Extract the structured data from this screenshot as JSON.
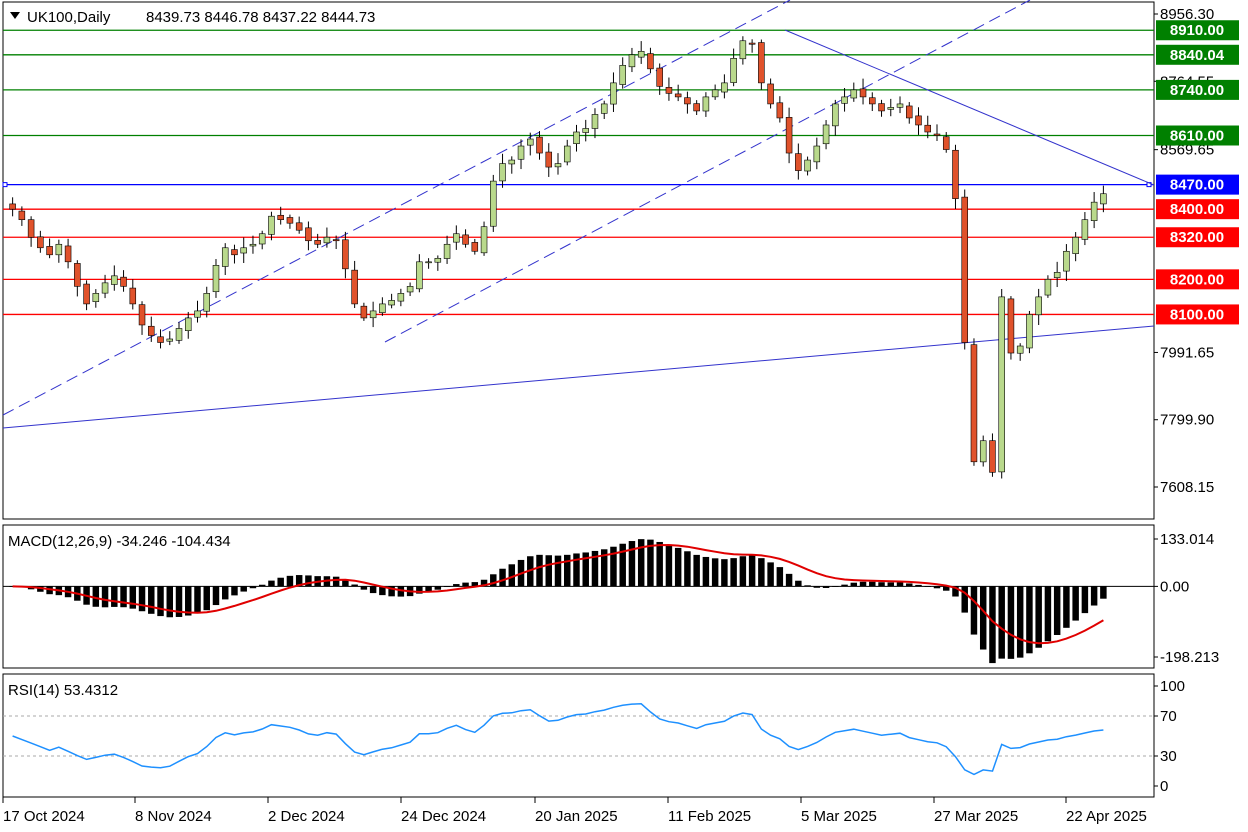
{
  "header": {
    "symbol": "UK100,Daily",
    "ohlc": "8439.73 8446.78 8437.22 8444.73"
  },
  "colors": {
    "bull": "#b9d98c",
    "bear": "#e0522b",
    "wick": "#000000",
    "resistance": "#008000",
    "support": "#ff0000",
    "pivot": "#0000ff",
    "trend": "#3333cc",
    "macd_hist": "#000000",
    "macd_signal": "#e00000",
    "rsi": "#1e90ff"
  },
  "chart_data": [
    {
      "type": "candlestick",
      "title": "UK100,Daily",
      "ylim": [
        7450,
        8990
      ],
      "y_ticks": [
        "8956.30",
        "8764.55",
        "8569.65",
        "7991.65",
        "7799.90",
        "7608.15"
      ],
      "x_ticks": [
        "17 Oct 2024",
        "8 Nov 2024",
        "2 Dec 2024",
        "24 Dec 2024",
        "20 Jan 2025",
        "11 Feb 2025",
        "5 Mar 2025",
        "27 Mar 2025",
        "22 Apr 2025"
      ],
      "levels": [
        {
          "label": "8910.00",
          "value": 8910.0,
          "kind": "resistance"
        },
        {
          "label": "8840.04",
          "value": 8840.04,
          "kind": "resistance"
        },
        {
          "label": "8740.00",
          "value": 8740.0,
          "kind": "resistance"
        },
        {
          "label": "8610.00",
          "value": 8610.0,
          "kind": "resistance"
        },
        {
          "label": "8470.00",
          "value": 8470.0,
          "kind": "pivot"
        },
        {
          "label": "8400.00",
          "value": 8400.0,
          "kind": "support"
        },
        {
          "label": "8320.00",
          "value": 8320.0,
          "kind": "support"
        },
        {
          "label": "8200.00",
          "value": 8200.0,
          "kind": "support"
        },
        {
          "label": "8100.00",
          "value": 8100.0,
          "kind": "support"
        }
      ],
      "closes": [
        8400,
        8370,
        8320,
        8290,
        8270,
        8300,
        8250,
        8180,
        8130,
        8160,
        8190,
        8210,
        8180,
        8130,
        8070,
        8040,
        8020,
        8030,
        8060,
        8090,
        8110,
        8160,
        8240,
        8290,
        8270,
        8290,
        8300,
        8330,
        8380,
        8370,
        8360,
        8340,
        8310,
        8300,
        8320,
        8310,
        8230,
        8130,
        8090,
        8110,
        8130,
        8140,
        8160,
        8180,
        8250,
        8250,
        8260,
        8300,
        8330,
        8300,
        8280,
        8350,
        8480,
        8530,
        8540,
        8580,
        8600,
        8560,
        8520,
        8530,
        8580,
        8620,
        8630,
        8670,
        8700,
        8760,
        8810,
        8840,
        8850,
        8800,
        8750,
        8730,
        8720,
        8700,
        8680,
        8720,
        8740,
        8760,
        8830,
        8880,
        8870,
        8760,
        8700,
        8660,
        8560,
        8510,
        8540,
        8580,
        8640,
        8700,
        8720,
        8740,
        8720,
        8700,
        8680,
        8690,
        8700,
        8660,
        8640,
        8620,
        8610,
        8570,
        8430,
        8020,
        7680,
        7740,
        7650,
        8150,
        7990,
        8010,
        8100,
        8150,
        8200,
        8220,
        8280,
        8320,
        8370,
        8420,
        8444
      ],
      "macd_ylim": [
        -198.213,
        133.014
      ],
      "macd_ticks": [
        "133.014",
        "0.00",
        "-198.213"
      ],
      "rsi_ylim": [
        0,
        100
      ],
      "rsi_ticks": [
        "100",
        "70",
        "30",
        "0"
      ]
    }
  ],
  "macd": {
    "label": "MACD(12,26,9) -34.246 -104.434",
    "histogram": [
      -34.246
    ],
    "signal": [
      -104.434
    ]
  },
  "rsi": {
    "label": "RSI(14) 53.4312",
    "current": 53.4312,
    "levels": [
      70,
      30
    ]
  }
}
